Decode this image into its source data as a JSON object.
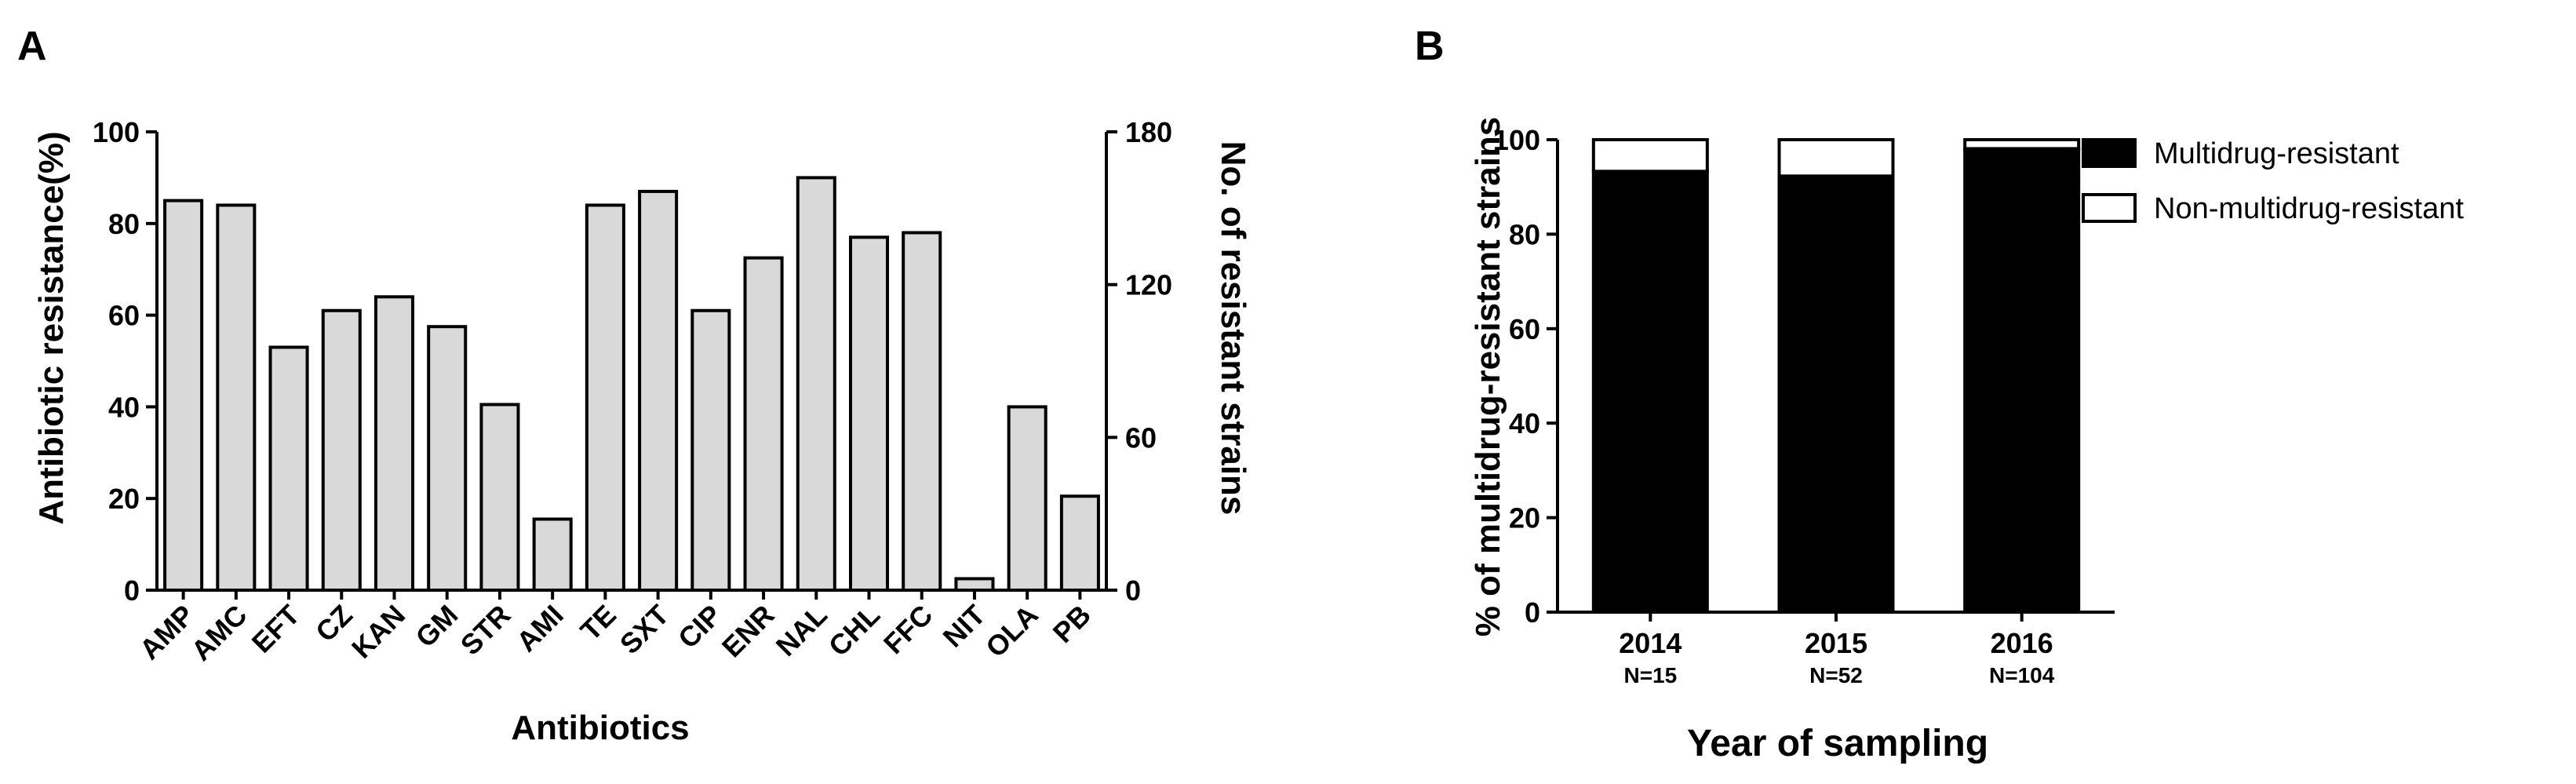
{
  "chart_data": [
    {
      "panel": "A",
      "type": "bar",
      "categories": [
        "AMP",
        "AMC",
        "EFT",
        "CZ",
        "KAN",
        "GM",
        "STR",
        "AMI",
        "TE",
        "SXT",
        "CIP",
        "ENR",
        "NAL",
        "CHL",
        "FFC",
        "NIT",
        "OLA",
        "PB"
      ],
      "values": [
        85,
        84,
        53,
        61,
        64,
        57.5,
        40.5,
        15.5,
        84,
        87,
        61,
        72.5,
        90,
        77,
        78,
        2.5,
        40,
        20.5
      ],
      "xlabel": "Antibiotics",
      "ylabel": "Antibiotic resistance(%)",
      "ylabel_right": "No. of resistant strains",
      "ylim": [
        0,
        100
      ],
      "yticks": [
        "0",
        "20",
        "40",
        "60",
        "80",
        "100"
      ],
      "ylim_right": [
        0,
        180
      ],
      "yticks_right": [
        "0",
        "60",
        "120",
        "180"
      ],
      "bar_color": "#d9d9d9",
      "grid": false
    },
    {
      "panel": "B",
      "type": "bar",
      "stacked": true,
      "categories": [
        "2014",
        "2015",
        "2016"
      ],
      "sample_sizes": [
        "N=15",
        "N=52",
        "N=104"
      ],
      "series": [
        {
          "name": "Multidrug-resistant",
          "values": [
            93.3,
            92.3,
            98.1
          ],
          "color": "#000000"
        },
        {
          "name": "Non-multidrug-resistant",
          "values": [
            6.7,
            7.7,
            1.9
          ],
          "color": "#ffffff"
        }
      ],
      "xlabel": "Year of sampling",
      "ylabel": "% of multidrug-resistant strains",
      "ylim": [
        0,
        100
      ],
      "yticks": [
        "0",
        "20",
        "40",
        "60",
        "80",
        "100"
      ],
      "legend_position": "top-right",
      "grid": false
    }
  ]
}
